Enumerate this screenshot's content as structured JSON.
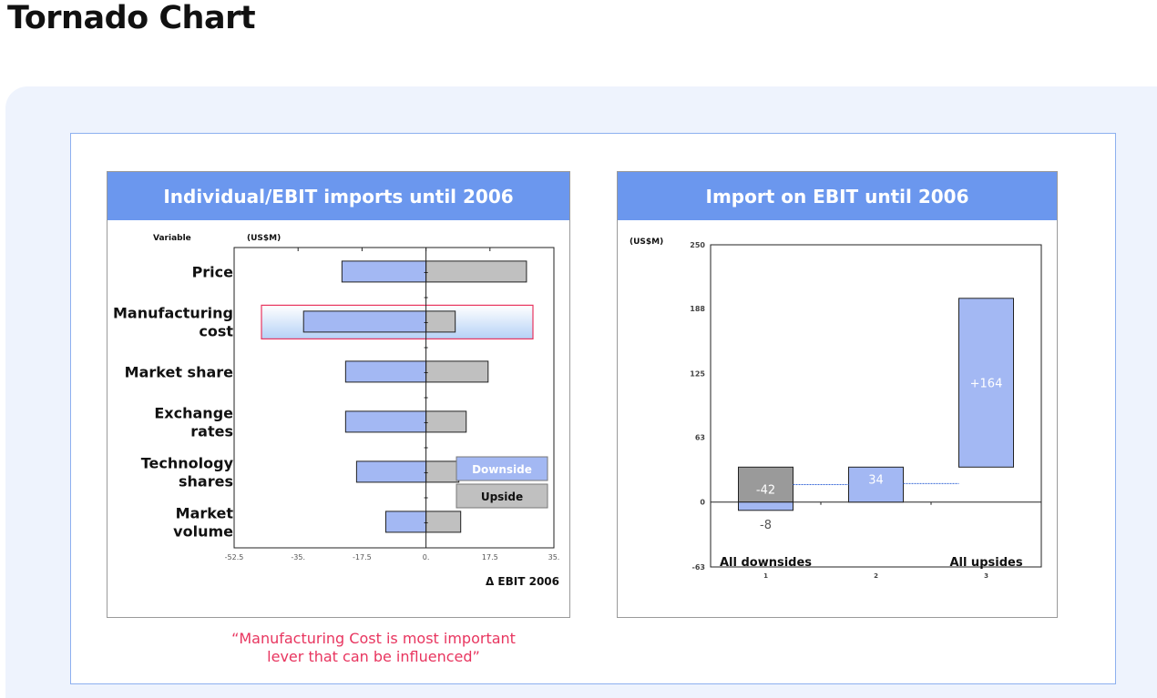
{
  "page": {
    "title": "Tornado Chart"
  },
  "quote": {
    "line1": "“Manufacturing Cost is most important",
    "line2": "lever that can be influenced”"
  },
  "colors": {
    "downside": "#a3b8f3",
    "upside": "#c0c0c0",
    "header": "#6b97ee",
    "highlight": "#e8355f",
    "dark_bar": "#9a9a9a"
  },
  "chart_data": [
    {
      "type": "bar",
      "orientation": "horizontal",
      "title": "Individual/EBIT imports until 2006",
      "variable_header": "Variable",
      "unit_label": "(US$M)",
      "xlabel": "Δ EBIT 2006",
      "xlim": [
        -52.5,
        35
      ],
      "x_ticks": [
        -52.5,
        -35,
        -17.5,
        0,
        17.5,
        35
      ],
      "x_tick_labels": [
        "-52.5",
        "-35.",
        "-17.5",
        "0.",
        "17.5",
        "35."
      ],
      "categories": [
        [
          "Price"
        ],
        [
          "Manufacturing",
          "cost"
        ],
        [
          "Market share"
        ],
        [
          "Exchange",
          "rates"
        ],
        [
          "Technology",
          "shares"
        ],
        [
          "Market",
          "volume"
        ]
      ],
      "series": [
        {
          "name": "Downside",
          "values": [
            -23,
            -33.5,
            -22,
            -22,
            -19,
            -11
          ]
        },
        {
          "name": "Upside",
          "values": [
            27.5,
            8,
            17,
            11,
            9,
            9.5
          ]
        }
      ],
      "highlighted_category": 1,
      "legend": {
        "position": "bottom-right"
      },
      "grid": false
    },
    {
      "type": "bar",
      "subtype": "waterfall",
      "title": "Import on EBIT until 2006",
      "unit_label": "(US$M)",
      "ylim": [
        -63,
        250
      ],
      "y_ticks": [
        -63,
        0,
        63,
        125,
        188,
        250
      ],
      "y_tick_labels": [
        "-63",
        "0",
        "63",
        "125",
        "188",
        "250"
      ],
      "x_ticks": [
        "1",
        "2",
        "3"
      ],
      "category_labels": [
        "All downsides",
        "",
        "All upsides"
      ],
      "bars": [
        {
          "x": "1",
          "stacks": [
            {
              "from": 0,
              "to": 34,
              "label": "-42",
              "color": "dark"
            },
            {
              "from": -8,
              "to": 0,
              "label": "-8",
              "color": "light"
            }
          ]
        },
        {
          "x": "2",
          "stacks": [
            {
              "from": 0,
              "to": 34,
              "label": "34",
              "color": "light"
            }
          ]
        },
        {
          "x": "3",
          "stacks": [
            {
              "from": 34,
              "to": 198,
              "label": "+164",
              "color": "light"
            }
          ]
        }
      ],
      "connectors": [
        17,
        18
      ],
      "grid": false
    }
  ]
}
